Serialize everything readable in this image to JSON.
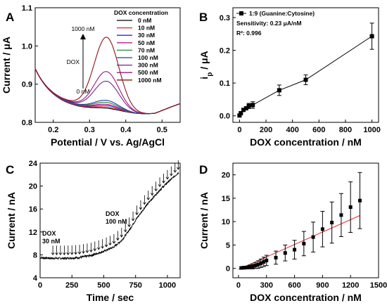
{
  "chart_data": [
    {
      "panel_label": "A",
      "type": "line",
      "xlabel": "Potential / V vs. Ag/AgCl",
      "ylabel": "Current / μA",
      "xlim": [
        0.15,
        0.55
      ],
      "ylim": [
        0.8,
        1.1
      ],
      "x_ticks": [
        0.2,
        0.3,
        0.4,
        0.5
      ],
      "x_tick_labels": [
        "0.2",
        "0.3",
        "0.4",
        "0.5"
      ],
      "y_ticks": [
        0.8,
        0.9,
        1.0,
        1.1
      ],
      "y_tick_labels": [
        "0.8",
        "0.9",
        "1.0",
        "1.1"
      ],
      "legend_title": "DOX concentration",
      "legend_position": "top-right",
      "annotations": {
        "top": "1000 nM",
        "middle": "DOX",
        "bottom": "0 nM"
      },
      "series": [
        {
          "name": "0 nM",
          "color": "#000000",
          "peak": 0.005
        },
        {
          "name": "10 nM",
          "color": "#e8202a",
          "peak": 0.008
        },
        {
          "name": "30 nM",
          "color": "#2a2ae0",
          "peak": 0.012
        },
        {
          "name": "50 nM",
          "color": "#c6178c",
          "peak": 0.015
        },
        {
          "name": "70 nM",
          "color": "#1e8a3a",
          "peak": 0.02
        },
        {
          "name": "100 nM",
          "color": "#1c3e9c",
          "peak": 0.025
        },
        {
          "name": "300 nM",
          "color": "#7a1e8c",
          "peak": 0.075
        },
        {
          "name": "500 nM",
          "color": "#9c1a82",
          "peak": 0.1
        },
        {
          "name": "1000 nM",
          "color": "#8c1414",
          "peak": 0.19
        }
      ]
    },
    {
      "panel_label": "B",
      "type": "scatter",
      "xlabel": "DOX concentration / nM",
      "ylabel": "ip / μA",
      "ylabel_main": "i",
      "ylabel_sub": "p",
      "ylabel_unit": " / μA",
      "xlim": [
        -50,
        1050
      ],
      "ylim": [
        -0.02,
        0.33
      ],
      "x_ticks": [
        0,
        200,
        400,
        600,
        800,
        1000
      ],
      "x_tick_labels": [
        "0",
        "200",
        "400",
        "600",
        "800",
        "1000"
      ],
      "y_ticks": [
        0.0,
        0.1,
        0.2,
        0.3
      ],
      "y_tick_labels": [
        "0.0",
        "0.1",
        "0.2",
        "0.3"
      ],
      "legend": "1:9 (Guanine:Cytosine)",
      "sensitivity": "Sensitivity: 0.23 μA/nM",
      "r2": "R²: 0.996",
      "points": [
        {
          "x": 0,
          "y": 0.001,
          "err": 0.003
        },
        {
          "x": 10,
          "y": 0.008,
          "err": 0.004
        },
        {
          "x": 30,
          "y": 0.018,
          "err": 0.004
        },
        {
          "x": 50,
          "y": 0.023,
          "err": 0.005
        },
        {
          "x": 70,
          "y": 0.03,
          "err": 0.008
        },
        {
          "x": 100,
          "y": 0.033,
          "err": 0.01
        },
        {
          "x": 300,
          "y": 0.078,
          "err": 0.016
        },
        {
          "x": 500,
          "y": 0.11,
          "err": 0.015
        },
        {
          "x": 1000,
          "y": 0.243,
          "err": 0.04
        }
      ],
      "fit_line": [
        [
          0,
          0.004
        ],
        [
          1000,
          0.243
        ]
      ]
    },
    {
      "panel_label": "C",
      "type": "line",
      "xlabel": "Time / sec",
      "ylabel": "Current / nA",
      "xlim": [
        0,
        1100
      ],
      "ylim": [
        4,
        24
      ],
      "x_ticks": [
        0,
        250,
        500,
        750,
        1000
      ],
      "x_tick_labels": [
        "0",
        "250",
        "500",
        "750",
        "1000"
      ],
      "y_ticks": [
        4,
        8,
        12,
        16,
        20,
        24
      ],
      "y_tick_labels": [
        "4",
        "8",
        "12",
        "16",
        "20",
        "24"
      ],
      "annotations": [
        {
          "line1": "DOX",
          "line2": "30 nM"
        },
        {
          "line1": "DOX",
          "line2": "100 nM"
        }
      ],
      "arrow_times": [
        100,
        130,
        160,
        190,
        220,
        250,
        280,
        310,
        340,
        370,
        400,
        430,
        460,
        490,
        520,
        550,
        580,
        610,
        640,
        670,
        700,
        730,
        760,
        790,
        820,
        850,
        880,
        910,
        940,
        970,
        1000,
        1030,
        1060,
        1085
      ],
      "trace": [
        [
          0,
          7.5
        ],
        [
          100,
          7.4
        ],
        [
          200,
          7.4
        ],
        [
          300,
          7.5
        ],
        [
          400,
          7.9
        ],
        [
          500,
          8.6
        ],
        [
          580,
          9.4
        ],
        [
          640,
          10.5
        ],
        [
          700,
          12.3
        ],
        [
          760,
          14.4
        ],
        [
          820,
          16.2
        ],
        [
          880,
          17.8
        ],
        [
          940,
          19.3
        ],
        [
          1000,
          20.6
        ],
        [
          1060,
          21.8
        ],
        [
          1090,
          22.4
        ]
      ]
    },
    {
      "panel_label": "D",
      "type": "scatter",
      "xlabel": "DOX concentration / nM",
      "ylabel": "Current / nA",
      "xlim": [
        -60,
        1500
      ],
      "ylim": [
        -2,
        22.5
      ],
      "x_ticks": [
        0,
        300,
        600,
        900,
        1200,
        1500
      ],
      "x_tick_labels": [
        "0",
        "300",
        "600",
        "900",
        "1200",
        "1500"
      ],
      "y_ticks": [
        0,
        5,
        10,
        15,
        20
      ],
      "y_tick_labels": [
        "0",
        "5",
        "10",
        "15",
        "20"
      ],
      "points": [
        {
          "x": 30,
          "y": 0.1,
          "err": 0.2
        },
        {
          "x": 60,
          "y": 0.15,
          "err": 0.3
        },
        {
          "x": 90,
          "y": 0.2,
          "err": 0.3
        },
        {
          "x": 120,
          "y": 0.3,
          "err": 0.4
        },
        {
          "x": 150,
          "y": 0.4,
          "err": 0.5
        },
        {
          "x": 180,
          "y": 0.6,
          "err": 0.6
        },
        {
          "x": 210,
          "y": 0.8,
          "err": 0.8
        },
        {
          "x": 240,
          "y": 1.1,
          "err": 0.9
        },
        {
          "x": 270,
          "y": 1.4,
          "err": 1.0
        },
        {
          "x": 300,
          "y": 1.7,
          "err": 1.1
        },
        {
          "x": 400,
          "y": 2.3,
          "err": 1.4
        },
        {
          "x": 500,
          "y": 3.3,
          "err": 1.7
        },
        {
          "x": 600,
          "y": 4.0,
          "err": 2.0
        },
        {
          "x": 700,
          "y": 5.3,
          "err": 2.6
        },
        {
          "x": 800,
          "y": 6.7,
          "err": 3.2
        },
        {
          "x": 900,
          "y": 8.4,
          "err": 3.8
        },
        {
          "x": 1000,
          "y": 9.8,
          "err": 4.4
        },
        {
          "x": 1100,
          "y": 11.4,
          "err": 4.6
        },
        {
          "x": 1200,
          "y": 13.1,
          "err": 5.4
        },
        {
          "x": 1300,
          "y": 14.5,
          "err": 6.0
        }
      ],
      "fit_line": [
        [
          0,
          -0.2
        ],
        [
          1300,
          11.3
        ]
      ],
      "fit_color": "#e8202a"
    }
  ]
}
